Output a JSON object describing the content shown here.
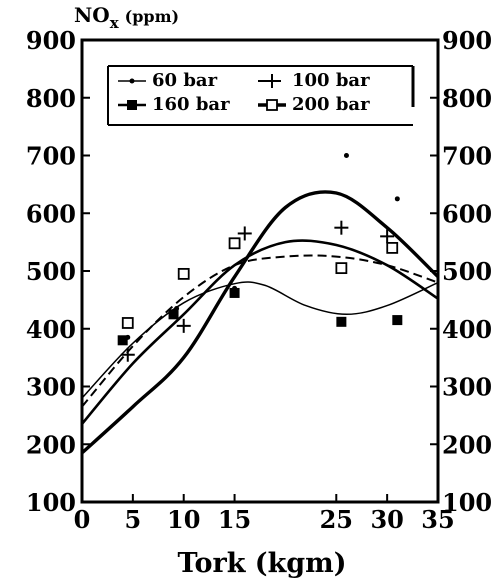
{
  "chart_data": {
    "type": "line",
    "xlabel": "Tork (kgm)",
    "ylabel": "NO",
    "ylabel_subscript": "x",
    "ylabel_unit": "(ppm)",
    "xlim": [
      0,
      35
    ],
    "ylim": [
      100,
      900
    ],
    "x_ticks": [
      0,
      5,
      10,
      15,
      25,
      30,
      35
    ],
    "x_tick_labels": [
      "0",
      "5",
      "10",
      "15",
      "25",
      "30",
      "35"
    ],
    "y_ticks": [
      100,
      200,
      300,
      400,
      500,
      600,
      700,
      800,
      900
    ],
    "y_tick_labels": [
      "100",
      "200",
      "300",
      "400",
      "500",
      "600",
      "700",
      "800",
      "900"
    ],
    "grid": false,
    "legend_position": "top",
    "series": [
      {
        "name": "60 bar",
        "line_style": "thin",
        "marker": "dot",
        "points": [
          [
            4.5,
            385
          ],
          [
            9.3,
            435
          ],
          [
            15,
            470
          ],
          [
            26,
            700
          ],
          [
            31,
            625
          ]
        ],
        "curve": [
          [
            0,
            280
          ],
          [
            5,
            375
          ],
          [
            10,
            445
          ],
          [
            15,
            478
          ],
          [
            18,
            475
          ],
          [
            22,
            440
          ],
          [
            26,
            425
          ],
          [
            30,
            440
          ],
          [
            35,
            480
          ]
        ]
      },
      {
        "name": "100 bar",
        "line_style": "dashed",
        "marker": "plus",
        "points": [
          [
            4.5,
            355
          ],
          [
            10,
            405
          ],
          [
            16,
            565
          ],
          [
            25.5,
            575
          ],
          [
            30,
            560
          ]
        ],
        "curve": [
          [
            0,
            265
          ],
          [
            5,
            370
          ],
          [
            10,
            455
          ],
          [
            15,
            510
          ],
          [
            20,
            525
          ],
          [
            25,
            525
          ],
          [
            30,
            510
          ],
          [
            35,
            480
          ]
        ]
      },
      {
        "name": "160 bar",
        "line_style": "solid",
        "marker": "filled-square",
        "points": [
          [
            4,
            380
          ],
          [
            9,
            425
          ],
          [
            15,
            462
          ],
          [
            25.5,
            412
          ],
          [
            31,
            415
          ]
        ],
        "curve": [
          [
            0,
            235
          ],
          [
            5,
            340
          ],
          [
            10,
            425
          ],
          [
            15,
            510
          ],
          [
            20,
            550
          ],
          [
            25,
            545
          ],
          [
            30,
            510
          ],
          [
            35,
            452
          ]
        ]
      },
      {
        "name": "200 bar",
        "line_style": "thick",
        "marker": "open-square",
        "points": [
          [
            4.5,
            410
          ],
          [
            10,
            495
          ],
          [
            15,
            548
          ],
          [
            25.5,
            505
          ],
          [
            30.5,
            540
          ]
        ],
        "curve": [
          [
            0,
            185
          ],
          [
            5,
            265
          ],
          [
            10,
            350
          ],
          [
            15,
            490
          ],
          [
            20,
            610
          ],
          [
            25,
            635
          ],
          [
            30,
            575
          ],
          [
            35,
            490
          ]
        ]
      }
    ]
  }
}
